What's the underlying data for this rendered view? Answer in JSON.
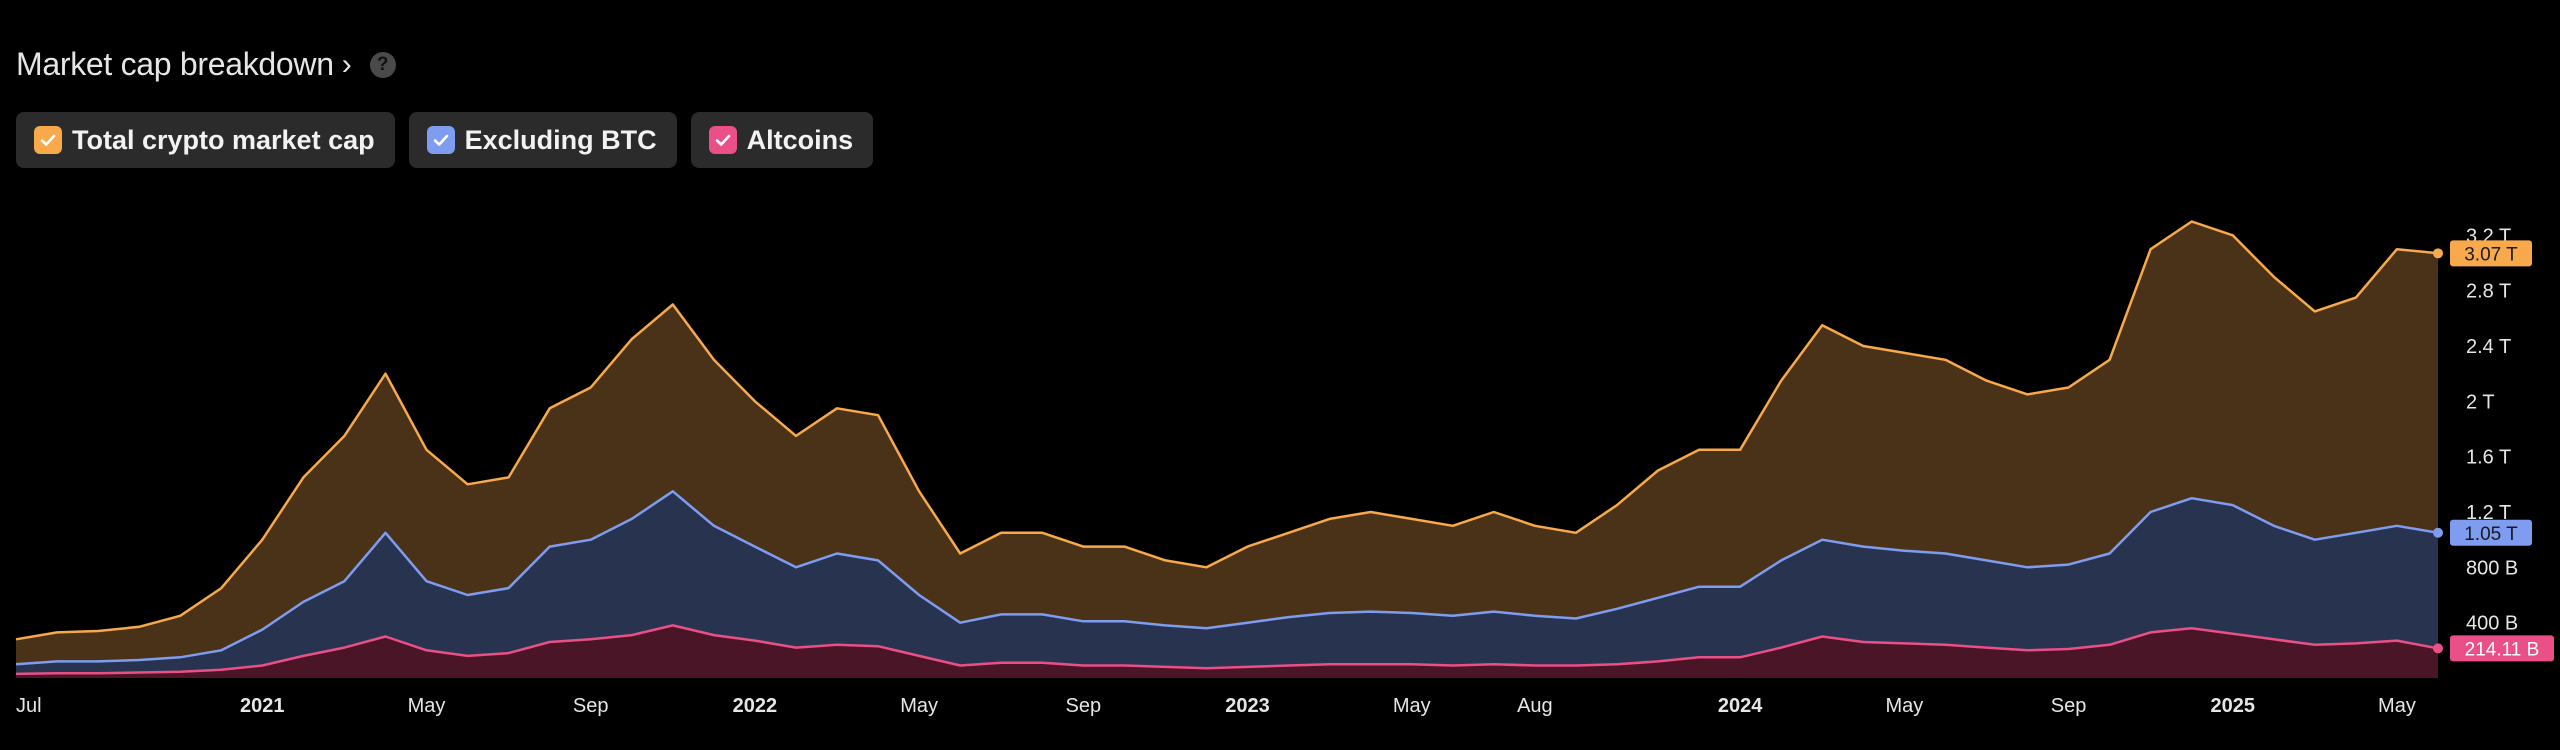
{
  "header": {
    "title": "Market cap breakdown",
    "chevron": "›",
    "help": "?"
  },
  "legend": [
    {
      "label": "Total crypto market cap",
      "color": "#f7a94b",
      "checked": true
    },
    {
      "label": "Excluding BTC",
      "color": "#7e9cf0",
      "checked": true
    },
    {
      "label": "Altcoins",
      "color": "#ea4f88",
      "checked": true
    }
  ],
  "chart_data": {
    "type": "area",
    "x": [
      "2020-07",
      "2020-08",
      "2020-09",
      "2020-10",
      "2020-11",
      "2020-12",
      "2021-01",
      "2021-02",
      "2021-03",
      "2021-04",
      "2021-05",
      "2021-06",
      "2021-07",
      "2021-08",
      "2021-09",
      "2021-10",
      "2021-11",
      "2021-12",
      "2022-01",
      "2022-02",
      "2022-03",
      "2022-04",
      "2022-05",
      "2022-06",
      "2022-07",
      "2022-08",
      "2022-09",
      "2022-10",
      "2022-11",
      "2022-12",
      "2023-01",
      "2023-02",
      "2023-03",
      "2023-04",
      "2023-05",
      "2023-06",
      "2023-07",
      "2023-08",
      "2023-09",
      "2023-10",
      "2023-11",
      "2023-12",
      "2024-01",
      "2024-02",
      "2024-03",
      "2024-04",
      "2024-05",
      "2024-06",
      "2024-07",
      "2024-08",
      "2024-09",
      "2024-10",
      "2024-11",
      "2024-12",
      "2025-01",
      "2025-02",
      "2025-03",
      "2025-04",
      "2025-05",
      "2025-06"
    ],
    "series": [
      {
        "name": "Total crypto market cap",
        "color": "#f7a94b",
        "fill": "#4a3219",
        "values": [
          0.28,
          0.33,
          0.34,
          0.37,
          0.45,
          0.65,
          1.0,
          1.45,
          1.75,
          2.2,
          1.65,
          1.4,
          1.45,
          1.95,
          2.1,
          2.45,
          2.7,
          2.3,
          2.0,
          1.75,
          1.95,
          1.9,
          1.35,
          0.9,
          1.05,
          1.05,
          0.95,
          0.95,
          0.85,
          0.8,
          0.95,
          1.05,
          1.15,
          1.2,
          1.15,
          1.1,
          1.2,
          1.1,
          1.05,
          1.25,
          1.5,
          1.65,
          1.65,
          2.15,
          2.55,
          2.4,
          2.35,
          2.3,
          2.15,
          2.05,
          2.1,
          2.3,
          3.1,
          3.3,
          3.2,
          2.9,
          2.65,
          2.75,
          3.1,
          3.07
        ]
      },
      {
        "name": "Excluding BTC",
        "color": "#7e9cf0",
        "fill": "#283350",
        "values": [
          0.1,
          0.12,
          0.12,
          0.13,
          0.15,
          0.2,
          0.35,
          0.55,
          0.7,
          1.05,
          0.7,
          0.6,
          0.65,
          0.95,
          1.0,
          1.15,
          1.35,
          1.1,
          0.95,
          0.8,
          0.9,
          0.85,
          0.6,
          0.4,
          0.46,
          0.46,
          0.41,
          0.41,
          0.38,
          0.36,
          0.4,
          0.44,
          0.47,
          0.48,
          0.47,
          0.45,
          0.48,
          0.45,
          0.43,
          0.5,
          0.58,
          0.66,
          0.66,
          0.85,
          1.0,
          0.95,
          0.92,
          0.9,
          0.85,
          0.8,
          0.82,
          0.9,
          1.2,
          1.3,
          1.25,
          1.1,
          1.0,
          1.05,
          1.1,
          1.05
        ]
      },
      {
        "name": "Altcoins",
        "color": "#ea4f88",
        "fill": "#4a1627",
        "values": [
          0.03,
          0.035,
          0.035,
          0.04,
          0.045,
          0.06,
          0.09,
          0.16,
          0.22,
          0.3,
          0.2,
          0.16,
          0.18,
          0.26,
          0.28,
          0.31,
          0.38,
          0.31,
          0.27,
          0.22,
          0.24,
          0.23,
          0.16,
          0.09,
          0.11,
          0.11,
          0.09,
          0.09,
          0.08,
          0.07,
          0.08,
          0.09,
          0.1,
          0.1,
          0.1,
          0.09,
          0.1,
          0.09,
          0.09,
          0.1,
          0.12,
          0.15,
          0.15,
          0.22,
          0.3,
          0.26,
          0.25,
          0.24,
          0.22,
          0.2,
          0.21,
          0.24,
          0.33,
          0.36,
          0.32,
          0.28,
          0.24,
          0.25,
          0.27,
          0.214
        ]
      }
    ],
    "current_labels": [
      "3.07 T",
      "1.05 T",
      "214.11 B"
    ],
    "y_ticks": [
      {
        "value": 0.4,
        "label": "400 B"
      },
      {
        "value": 0.8,
        "label": "800 B"
      },
      {
        "value": 1.2,
        "label": "1.2 T"
      },
      {
        "value": 1.6,
        "label": "1.6 T"
      },
      {
        "value": 2.0,
        "label": "2 T"
      },
      {
        "value": 2.4,
        "label": "2.4 T"
      },
      {
        "value": 2.8,
        "label": "2.8 T"
      },
      {
        "value": 3.2,
        "label": "3.2 T"
      }
    ],
    "ylim": [
      0,
      3.6
    ],
    "x_ticks": [
      {
        "x": "2020-07",
        "label": "Jul",
        "bold": false
      },
      {
        "x": "2021-01",
        "label": "2021",
        "bold": true
      },
      {
        "x": "2021-05",
        "label": "May",
        "bold": false
      },
      {
        "x": "2021-09",
        "label": "Sep",
        "bold": false
      },
      {
        "x": "2022-01",
        "label": "2022",
        "bold": true
      },
      {
        "x": "2022-05",
        "label": "May",
        "bold": false
      },
      {
        "x": "2022-09",
        "label": "Sep",
        "bold": false
      },
      {
        "x": "2023-01",
        "label": "2023",
        "bold": true
      },
      {
        "x": "2023-05",
        "label": "May",
        "bold": false
      },
      {
        "x": "2023-08",
        "label": "Aug",
        "bold": false
      },
      {
        "x": "2024-01",
        "label": "2024",
        "bold": true
      },
      {
        "x": "2024-05",
        "label": "May",
        "bold": false
      },
      {
        "x": "2024-09",
        "label": "Sep",
        "bold": false
      },
      {
        "x": "2025-01",
        "label": "2025",
        "bold": true
      },
      {
        "x": "2025-05",
        "label": "May",
        "bold": false
      }
    ]
  }
}
